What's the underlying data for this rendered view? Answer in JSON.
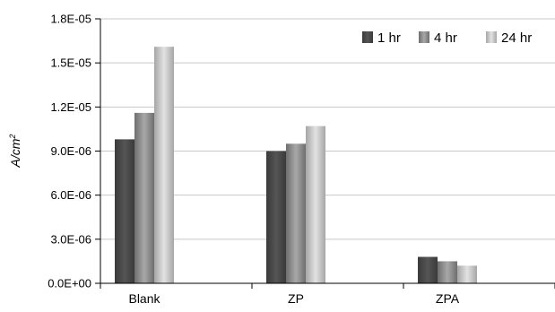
{
  "chart_data": {
    "type": "bar",
    "categories": [
      "Blank",
      "ZP",
      "ZPA"
    ],
    "series": [
      {
        "name": "1 hr",
        "values": [
          9.8e-06,
          9e-06,
          1.8e-06
        ]
      },
      {
        "name": "4 hr",
        "values": [
          1.16e-05,
          9.5e-06,
          1.5e-06
        ]
      },
      {
        "name": "24 hr",
        "values": [
          1.61e-05,
          1.07e-05,
          1.2e-06
        ]
      }
    ],
    "ylim": [
      0,
      1.8e-05
    ],
    "yticks": [
      0,
      3e-06,
      6e-06,
      9e-06,
      1.2e-05,
      1.5e-05,
      1.8e-05
    ],
    "ytick_labels": [
      "0.0E+00",
      "3.0E-06",
      "6.0E-06",
      "9.0E-06",
      "1.2E-05",
      "1.5E-05",
      "1.8E-05"
    ],
    "ylabel_main": "A/cm",
    "ylabel_sup": "2",
    "xlabel": "",
    "grid": true,
    "legend_position": "top-right",
    "series_colors": [
      "#4a4a4a",
      "#8a8a8a",
      "#c4c4c4"
    ]
  }
}
